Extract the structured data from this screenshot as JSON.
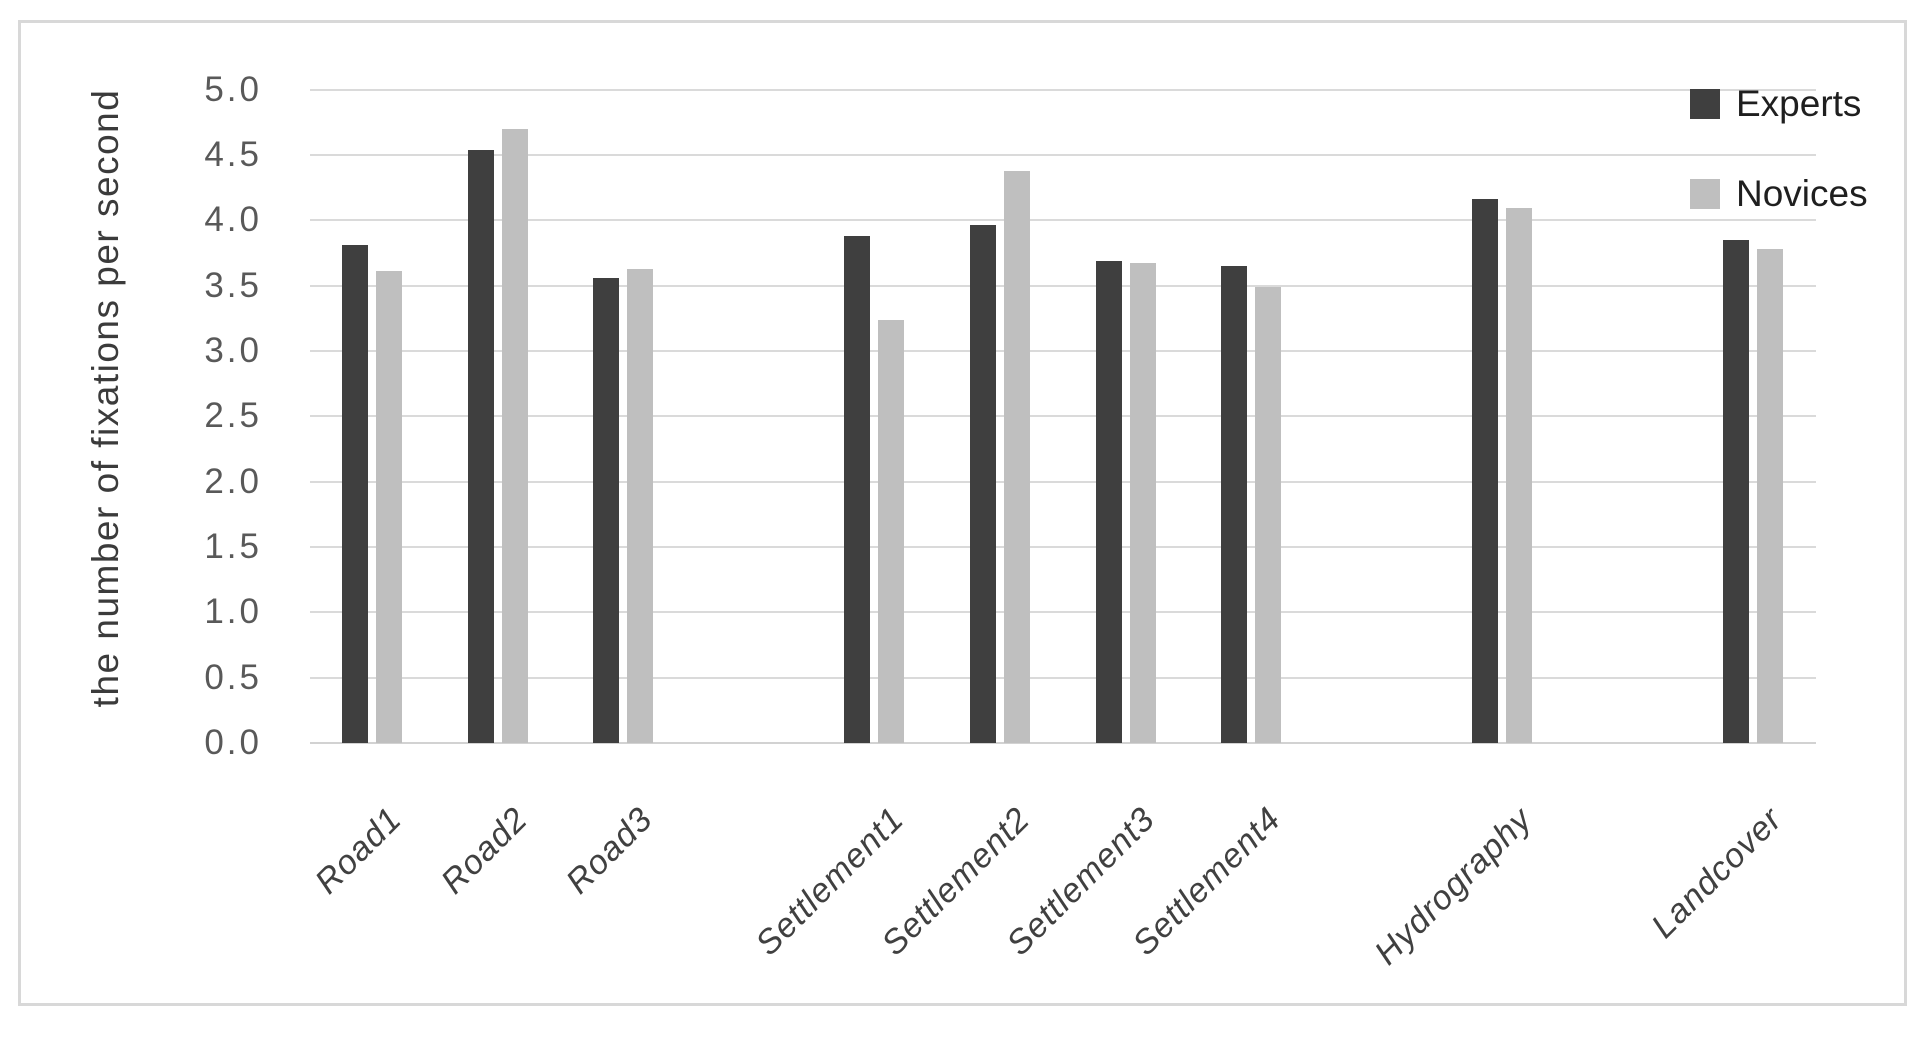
{
  "chart_data": {
    "type": "bar",
    "title": "",
    "categories": [
      "Road1",
      "Road2",
      "Road3",
      "Settlement1",
      "Settlement2",
      "Settlement3",
      "Settlement4",
      "Hydrography",
      "Landcover"
    ],
    "series": [
      {
        "name": "Experts",
        "color": "#3f3f3f",
        "values": [
          3.81,
          4.54,
          3.56,
          3.88,
          3.96,
          3.69,
          3.65,
          4.16,
          3.85
        ]
      },
      {
        "name": "Novices",
        "color": "#bfbfbf",
        "values": [
          3.61,
          4.7,
          3.63,
          3.24,
          4.38,
          3.67,
          3.49,
          4.09,
          3.78
        ]
      }
    ],
    "xlabel": "",
    "ylabel": "the number of fixations per second",
    "ylim": [
      0.0,
      5.0
    ],
    "ytick_step": 0.5,
    "grid": true,
    "gridline_color": "#dadada",
    "legend_position": "top-right",
    "x_label_rotation_deg": 45,
    "category_slots": [
      0,
      1,
      2,
      4,
      5,
      6,
      7,
      9,
      11
    ],
    "total_slots": 12
  },
  "y_axis": {
    "title": "the number of fixations per second",
    "ticks": [
      "5.0",
      "4.5",
      "4.0",
      "3.5",
      "3.0",
      "2.5",
      "2.0",
      "1.5",
      "1.0",
      "0.5",
      "0.0"
    ]
  },
  "x_axis": {
    "labels": [
      "Road1",
      "Road2",
      "Road3",
      "Settlement1",
      "Settlement2",
      "Settlement3",
      "Settlement4",
      "Hydrography",
      "Landcover"
    ]
  },
  "legend": {
    "items": [
      {
        "label": "Experts",
        "color": "#3f3f3f"
      },
      {
        "label": "Novices",
        "color": "#bfbfbf"
      }
    ]
  }
}
